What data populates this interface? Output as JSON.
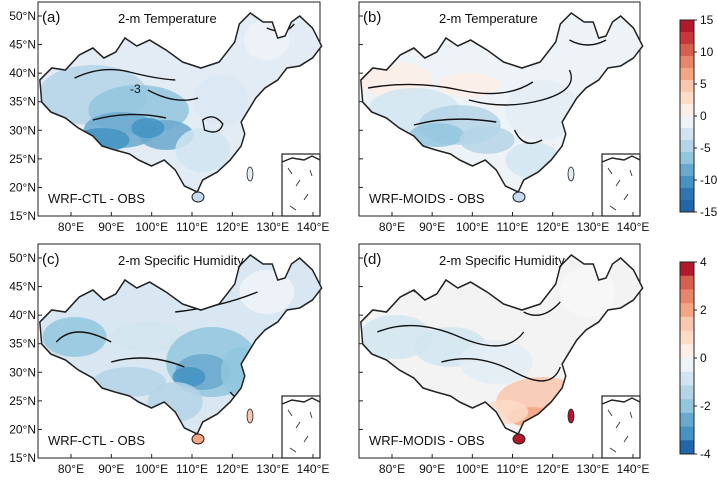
{
  "panels": [
    {
      "letter": "(a)",
      "title": "2-m Temperature",
      "label": "WRF-CTL - OBS",
      "contour_label": "-3",
      "scheme": "temp_ctl"
    },
    {
      "letter": "(b)",
      "title": "2-m Temperature",
      "label": "WRF-MOIDS - OBS",
      "contour_label": "",
      "scheme": "temp_modis"
    },
    {
      "letter": "(c)",
      "title": "2-m Specific Humidity",
      "label": "WRF-CTL - OBS",
      "contour_label": "",
      "scheme": "q_ctl"
    },
    {
      "letter": "(d)",
      "title": "2-m Specific Humidity",
      "label": "WRF-MODIS - OBS",
      "contour_label": "",
      "scheme": "q_modis"
    }
  ],
  "lat_ticks": [
    "50°N",
    "45°N",
    "40°N",
    "35°N",
    "30°N",
    "25°N",
    "20°N",
    "15°N"
  ],
  "lon_ticks": [
    "80°E",
    "90°E",
    "100°E",
    "110°E",
    "120°E",
    "130°E",
    "140°E"
  ],
  "colorbars": [
    {
      "name": "temperature",
      "ticks": [
        "15",
        "10",
        "5",
        "0",
        "-5",
        "-10",
        "-15"
      ],
      "colors": [
        "#b2182b",
        "#c9363a",
        "#d6604d",
        "#e8866c",
        "#f4a582",
        "#f8c7ae",
        "#fddbc7",
        "#fbeee6",
        "#eef3f8",
        "#d1e5f0",
        "#b4d4e8",
        "#92c5de",
        "#6aa9cf",
        "#4393c3",
        "#2f75b5",
        "#2166ac"
      ]
    },
    {
      "name": "humidity",
      "ticks": [
        "4",
        "2",
        "0",
        "-2",
        "-4"
      ],
      "colors": [
        "#b2182b",
        "#d6604d",
        "#e8866c",
        "#f4a582",
        "#f8c7ae",
        "#fddbc7",
        "#fbeee6",
        "#eef3f8",
        "#d1e5f0",
        "#b4d4e8",
        "#92c5de",
        "#6aa9cf",
        "#4393c3",
        "#2166ac"
      ]
    }
  ]
}
